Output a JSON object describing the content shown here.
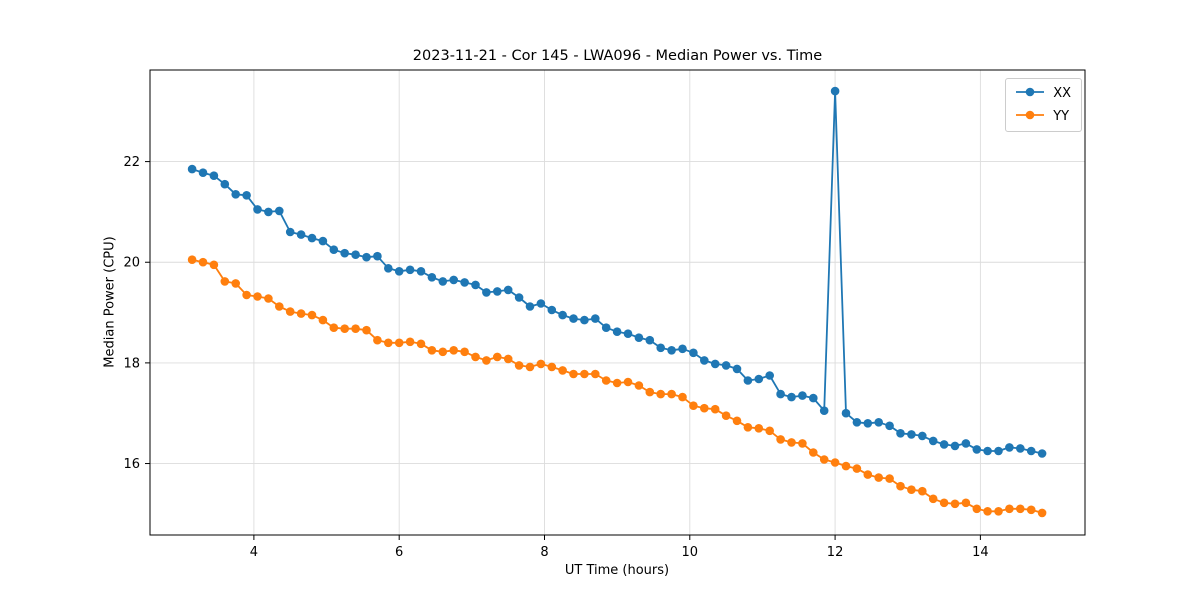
{
  "figure": {
    "title": "2023-11-21 - Cor 145 - LWA096 - Median Power vs. Time",
    "xlabel": "UT Time (hours)",
    "ylabel": "Median Power (CPU)"
  },
  "chart_data": {
    "type": "line",
    "title": "2023-11-21 - Cor 145 - LWA096 - Median Power vs. Time",
    "xlabel": "UT Time (hours)",
    "ylabel": "Median Power (CPU)",
    "xlim": [
      2.57,
      15.44
    ],
    "ylim": [
      14.58,
      23.82
    ],
    "xticks": [
      4,
      6,
      8,
      10,
      12,
      14
    ],
    "yticks": [
      16,
      18,
      20,
      22
    ],
    "grid": true,
    "legend": {
      "position": "upper right"
    },
    "x": [
      3.15,
      3.3,
      3.45,
      3.6,
      3.75,
      3.9,
      4.05,
      4.2,
      4.35,
      4.5,
      4.65,
      4.8,
      4.95,
      5.1,
      5.25,
      5.4,
      5.55,
      5.7,
      5.85,
      6.0,
      6.15,
      6.3,
      6.45,
      6.6,
      6.75,
      6.9,
      7.05,
      7.2,
      7.35,
      7.5,
      7.65,
      7.8,
      7.95,
      8.1,
      8.25,
      8.4,
      8.55,
      8.7,
      8.85,
      9.0,
      9.15,
      9.3,
      9.45,
      9.6,
      9.75,
      9.9,
      10.05,
      10.2,
      10.35,
      10.5,
      10.65,
      10.8,
      10.95,
      11.1,
      11.25,
      11.4,
      11.55,
      11.7,
      11.85,
      12.0,
      12.15,
      12.3,
      12.45,
      12.6,
      12.75,
      12.9,
      13.05,
      13.2,
      13.35,
      13.5,
      13.65,
      13.8,
      13.95,
      14.1,
      14.25,
      14.4,
      14.55,
      14.7,
      14.85
    ],
    "series": [
      {
        "name": "XX",
        "color": "#1f77b4",
        "values": [
          21.85,
          21.78,
          21.72,
          21.55,
          21.35,
          21.33,
          21.05,
          21.0,
          21.02,
          20.6,
          20.55,
          20.48,
          20.42,
          20.25,
          20.18,
          20.15,
          20.1,
          20.12,
          19.88,
          19.82,
          19.85,
          19.82,
          19.7,
          19.62,
          19.65,
          19.6,
          19.55,
          19.4,
          19.42,
          19.45,
          19.3,
          19.12,
          19.18,
          19.05,
          18.95,
          18.88,
          18.85,
          18.88,
          18.7,
          18.62,
          18.58,
          18.5,
          18.45,
          18.3,
          18.25,
          18.28,
          18.2,
          18.05,
          17.98,
          17.95,
          17.88,
          17.65,
          17.68,
          17.75,
          17.38,
          17.32,
          17.35,
          17.3,
          17.05,
          23.4,
          17.0,
          16.82,
          16.8,
          16.82,
          16.75,
          16.6,
          16.58,
          16.55,
          16.45,
          16.38,
          16.35,
          16.4,
          16.28,
          16.25,
          16.25,
          16.32,
          16.3,
          16.25,
          16.2
        ]
      },
      {
        "name": "YY",
        "color": "#ff7f0e",
        "values": [
          20.05,
          20.0,
          19.95,
          19.62,
          19.58,
          19.35,
          19.32,
          19.28,
          19.12,
          19.02,
          18.98,
          18.95,
          18.85,
          18.7,
          18.68,
          18.68,
          18.65,
          18.45,
          18.4,
          18.4,
          18.42,
          18.38,
          18.25,
          18.22,
          18.25,
          18.22,
          18.12,
          18.05,
          18.12,
          18.08,
          17.95,
          17.92,
          17.98,
          17.92,
          17.85,
          17.78,
          17.78,
          17.78,
          17.65,
          17.6,
          17.62,
          17.55,
          17.42,
          17.38,
          17.38,
          17.32,
          17.15,
          17.1,
          17.08,
          16.95,
          16.85,
          16.72,
          16.7,
          16.65,
          16.48,
          16.42,
          16.4,
          16.22,
          16.08,
          16.02,
          15.95,
          15.9,
          15.78,
          15.72,
          15.7,
          15.55,
          15.48,
          15.45,
          15.3,
          15.22,
          15.2,
          15.22,
          15.1,
          15.05,
          15.05,
          15.1,
          15.1,
          15.08,
          15.02
        ]
      }
    ]
  }
}
